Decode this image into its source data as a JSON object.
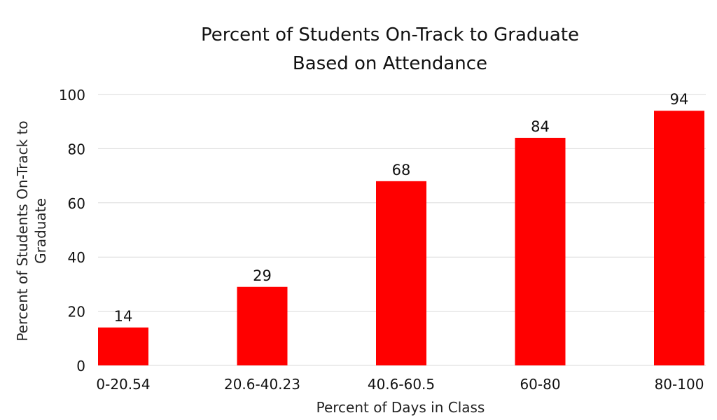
{
  "chart_data": {
    "type": "bar",
    "title": [
      "Percent of Students On-Track to Graduate",
      "Based on Attendance"
    ],
    "xlabel": "Percent of Days in Class",
    "ylabel": [
      "Percent of Students On-Track to",
      "Graduate"
    ],
    "categories": [
      "0-20.54",
      "20.6-40.23",
      "40.6-60.5",
      "60-80",
      "80-100"
    ],
    "values": [
      14,
      29,
      68,
      84,
      94
    ],
    "data_labels": [
      "14",
      "29",
      "68",
      "84",
      "94"
    ],
    "ylim": [
      0,
      100
    ],
    "yticks": [
      "0",
      "20",
      "40",
      "60",
      "80",
      "100"
    ],
    "grid": true,
    "legend": "none",
    "colors": {
      "bar": "#ff0000",
      "grid": "#d9d9d9",
      "text": "#111111"
    }
  }
}
